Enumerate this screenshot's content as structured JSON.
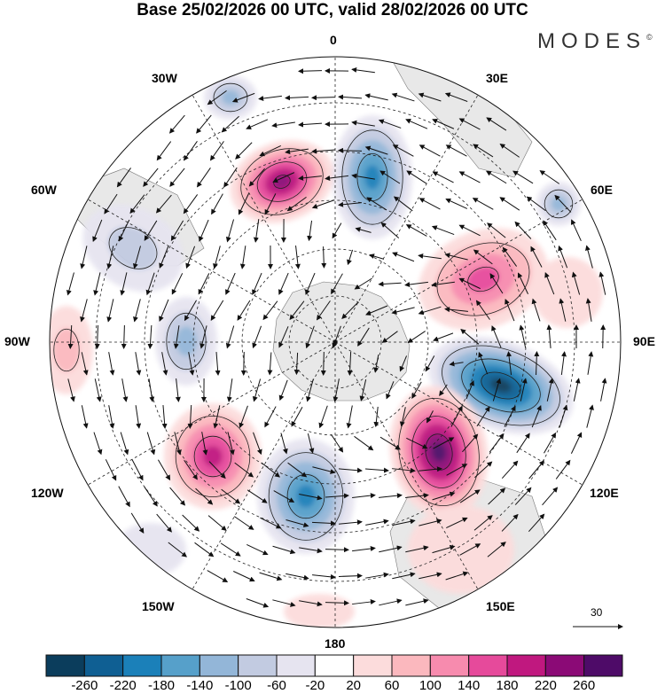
{
  "title": "Base 25/02/2026 00 UTC, valid 28/02/2026 00 UTC",
  "logo": "MODES",
  "logo_mark": "©",
  "longitude_labels": {
    "n": "0",
    "ne": "30E",
    "ene": "60E",
    "e": "90E",
    "ese": "120E",
    "se": "150E",
    "s": "180",
    "sw": "150W",
    "wsw": "120W",
    "w": "90W",
    "wnw": "60W",
    "nw": "30W"
  },
  "vector_reference": "30",
  "colorbar": {
    "colors": [
      "#0b3d5c",
      "#0f5f93",
      "#1b80b9",
      "#56a0ca",
      "#93b6d8",
      "#c2cbe1",
      "#e6e4f0",
      "#ffffff",
      "#fcdcdc",
      "#fbb8be",
      "#f78bae",
      "#e64a9b",
      "#c0187f",
      "#8b0a76",
      "#4e0b68"
    ],
    "labels": [
      "-260",
      "-220",
      "-180",
      "-140",
      "-100",
      "-60",
      "-20",
      "20",
      "60",
      "100",
      "140",
      "180",
      "220",
      "260"
    ]
  }
}
